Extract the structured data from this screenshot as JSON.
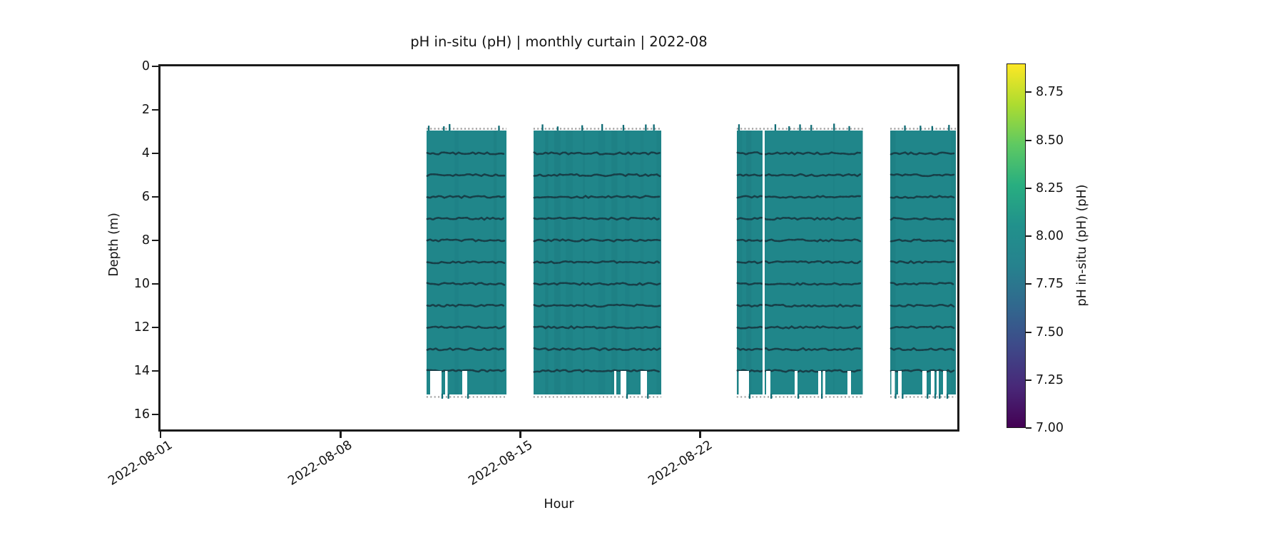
{
  "chart_data": {
    "type": "heatmap",
    "title": "pH in-situ (pH) | monthly curtain | 2022-08",
    "xlabel": "Hour",
    "ylabel": "Depth (m)",
    "x_axis": {
      "start": "2022-08-01",
      "end": "2022-09-01",
      "total_days": 31,
      "tick_days": [
        1,
        8,
        15,
        22
      ],
      "tick_labels": [
        "2022-08-01",
        "2022-08-08",
        "2022-08-15",
        "2022-08-22"
      ]
    },
    "y_axis": {
      "unit": "m",
      "range_m": [
        16.7,
        0
      ],
      "ticks": [
        0,
        2,
        4,
        6,
        8,
        10,
        12,
        14,
        16
      ]
    },
    "colorbar": {
      "label": "pH in-situ (pH) (pH)",
      "colormap": "viridis",
      "vmin": 7.0,
      "vmax": 8.9,
      "tick_values": [
        8.75,
        8.5,
        8.25,
        8.0,
        7.75,
        7.5,
        7.25,
        7.0
      ],
      "tick_labels": [
        "8.75",
        "8.50",
        "8.25",
        "8.00",
        "7.75",
        "7.50",
        "7.25",
        "7.00"
      ],
      "viridis_stops": [
        "#440154",
        "#482878",
        "#3e4989",
        "#31688e",
        "#26828e",
        "#21918c",
        "#28ae80",
        "#5ec962",
        "#addc30",
        "#fde725"
      ]
    },
    "field": {
      "background_ph": 7.97,
      "background_color": "#20868a",
      "sensor_line_ph": 7.6,
      "sensor_line_color": "#173f48",
      "sensor_line_depths_m": [
        4,
        5,
        6,
        7,
        8,
        9,
        10,
        11,
        12,
        13,
        14
      ],
      "depth_top_m": 2.95,
      "depth_bottom_m": 15.08,
      "notch_top_depth_m": 14.0,
      "speckle_color": "#a3a3a3",
      "top_tick_color": "#0f6b74"
    },
    "coverage_bands_days": [
      {
        "start": 11.35,
        "end": 14.46,
        "notches": [
          [
            11.49,
            0.44
          ],
          [
            12.07,
            0.1
          ],
          [
            12.74,
            0.19
          ]
        ],
        "gaps": []
      },
      {
        "start": 15.51,
        "end": 20.48,
        "notches": [
          [
            18.65,
            0.09
          ],
          [
            18.9,
            0.22
          ],
          [
            19.68,
            0.25
          ]
        ],
        "gaps": []
      },
      {
        "start": 23.42,
        "end": 28.33,
        "notches": [
          [
            23.5,
            0.39
          ],
          [
            24.56,
            0.17
          ],
          [
            25.67,
            0.11
          ],
          [
            26.59,
            0.11
          ],
          [
            26.77,
            0.1
          ],
          [
            27.72,
            0.14
          ]
        ],
        "gaps": [
          [
            24.42,
            0.09
          ]
        ]
      },
      {
        "start": 29.39,
        "end": 31.95,
        "notches": [
          [
            29.43,
            0.14
          ],
          [
            29.7,
            0.14
          ],
          [
            30.64,
            0.17
          ],
          [
            30.97,
            0.14
          ],
          [
            31.19,
            0.09
          ],
          [
            31.44,
            0.14
          ]
        ],
        "gaps": []
      }
    ]
  }
}
